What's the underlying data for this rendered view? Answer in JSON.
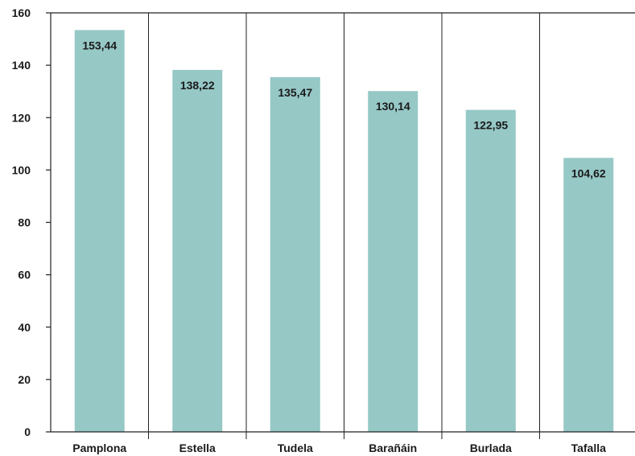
{
  "chart_data": {
    "type": "bar",
    "categories": [
      "Pamplona",
      "Estella",
      "Tudela",
      "Barañáin",
      "Burlada",
      "Tafalla"
    ],
    "values": [
      153.44,
      138.22,
      135.47,
      130.14,
      122.95,
      104.62
    ],
    "data_labels": [
      "153,44",
      "138,22",
      "135,47",
      "130,14",
      "122,95",
      "104,62"
    ],
    "title": "",
    "xlabel": "",
    "ylabel": "",
    "ylim": [
      0,
      160
    ],
    "yticks": [
      0,
      20,
      40,
      60,
      80,
      100,
      120,
      140,
      160
    ],
    "grid": false,
    "legend": "none",
    "bar_color": "#96c8c6",
    "axis_color": "#222222"
  }
}
